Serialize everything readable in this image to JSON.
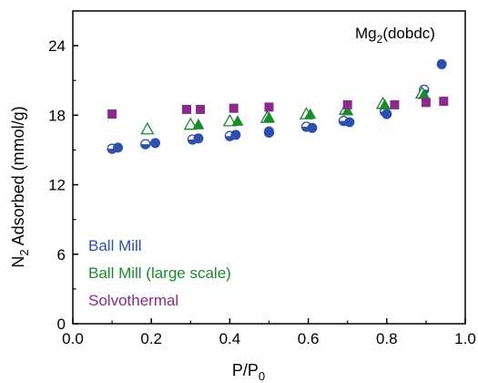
{
  "chart_data": {
    "type": "scatter",
    "title": "",
    "annotation": {
      "main": "Mg",
      "sub": "2",
      "rest": "(dobdc)"
    },
    "xlabel": {
      "main": "P/P",
      "sub": "0"
    },
    "ylabel": {
      "pre": "N",
      "sub": "2",
      "post": " Adsorbed (mmol/g)"
    },
    "xlim": [
      0.0,
      1.0
    ],
    "ylim": [
      0,
      27
    ],
    "x_ticks": [
      0.0,
      0.2,
      0.4,
      0.6,
      0.8,
      1.0
    ],
    "x_tick_labels": [
      "0.0",
      "0.2",
      "0.4",
      "0.6",
      "0.8",
      "1.0"
    ],
    "y_ticks": [
      0,
      6,
      12,
      18,
      24
    ],
    "y_tick_labels": [
      "0",
      "6",
      "12",
      "18",
      "24"
    ],
    "grid": false,
    "legend_position": "bottom-left",
    "series": [
      {
        "name": "Ball Mill",
        "color": "#2e4fae",
        "marker": "circle",
        "adsorption": {
          "x": [
            0.115,
            0.21,
            0.32,
            0.415,
            0.5,
            0.61,
            0.705,
            0.8,
            0.94
          ],
          "y": [
            15.2,
            15.6,
            16.0,
            16.3,
            16.6,
            16.9,
            17.4,
            18.1,
            22.4
          ]
        },
        "desorption": {
          "x": [
            0.1,
            0.185,
            0.305,
            0.4,
            0.5,
            0.595,
            0.69,
            0.795,
            0.895
          ],
          "y": [
            15.1,
            15.5,
            15.9,
            16.2,
            16.5,
            17.0,
            17.5,
            18.3,
            20.2
          ]
        }
      },
      {
        "name": "Ball Mill (large scale)",
        "color": "#1b8a2e",
        "marker": "triangle",
        "adsorption": {
          "x": [
            0.32,
            0.42,
            0.5,
            0.605,
            0.7,
            0.795,
            0.895
          ],
          "y": [
            17.2,
            17.5,
            17.8,
            18.1,
            18.4,
            18.9,
            19.8
          ]
        },
        "desorption": {
          "x": [
            0.19,
            0.3,
            0.4,
            0.495,
            0.595,
            0.695,
            0.79,
            0.89
          ],
          "y": [
            16.8,
            17.2,
            17.5,
            17.8,
            18.1,
            18.5,
            19.0,
            19.9
          ]
        }
      },
      {
        "name": "Solvothermal",
        "color": "#8c2a8c",
        "marker": "square",
        "adsorption": {
          "x": [
            0.1,
            0.29,
            0.325,
            0.41,
            0.5,
            0.7,
            0.82,
            0.9,
            0.945
          ],
          "y": [
            18.1,
            18.5,
            18.5,
            18.6,
            18.7,
            18.9,
            18.9,
            19.1,
            19.2
          ]
        }
      }
    ]
  }
}
